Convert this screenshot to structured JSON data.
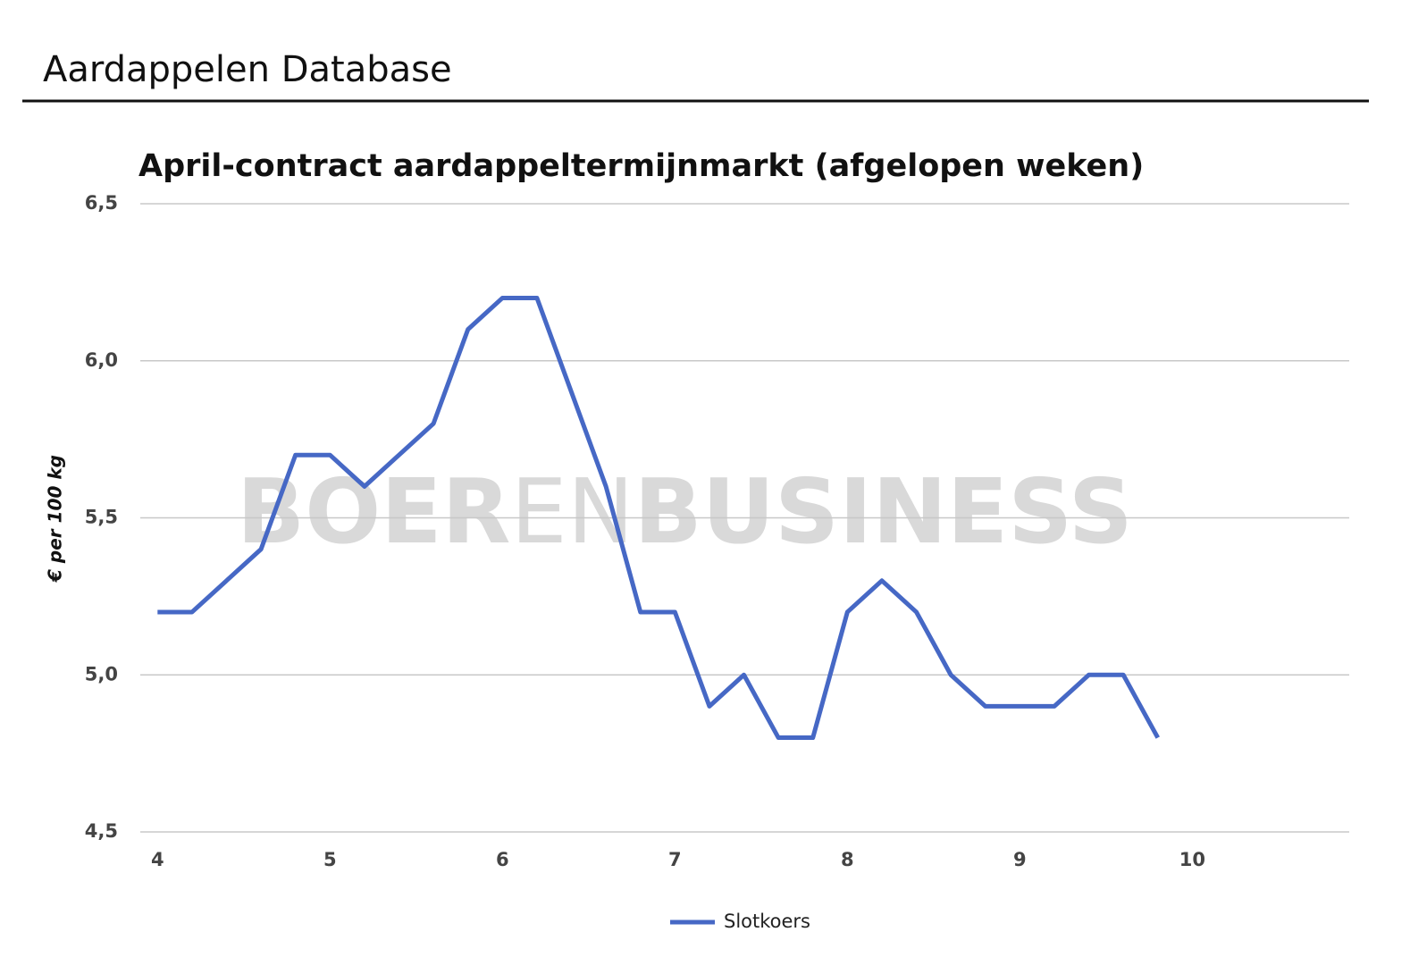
{
  "header": {
    "title": "Aardappelen Database"
  },
  "chart_data": {
    "type": "line",
    "title": "April-contract aardappeltermijnmarkt (afgelopen weken)",
    "y_label": "€ per 100 kg",
    "watermark": [
      "BOER",
      "EN",
      "BUSINESS"
    ],
    "x": [
      4.0,
      4.2,
      4.4,
      4.6,
      4.8,
      5.0,
      5.2,
      5.4,
      5.6,
      5.8,
      6.0,
      6.2,
      6.4,
      6.6,
      6.8,
      7.0,
      7.2,
      7.4,
      7.6,
      7.8,
      8.0,
      8.2,
      8.4,
      8.6,
      8.8,
      9.0,
      9.2,
      9.4,
      9.6,
      9.8
    ],
    "series": [
      {
        "name": "Slotkoers",
        "color": "#4668c5",
        "values": [
          5.2,
          5.2,
          5.3,
          5.4,
          5.7,
          5.7,
          5.6,
          5.7,
          5.8,
          6.1,
          6.2,
          6.2,
          5.9,
          5.6,
          5.2,
          5.2,
          4.9,
          5.0,
          4.8,
          4.8,
          5.2,
          5.3,
          5.2,
          5.0,
          4.9,
          4.9,
          4.9,
          5.0,
          5.0,
          4.8
        ]
      }
    ],
    "xlim": [
      3.9,
      10.91
    ],
    "xticks": [
      4,
      5,
      6,
      7,
      8,
      9,
      10
    ],
    "ylim": [
      4.5,
      6.5
    ],
    "yticks": [
      {
        "value": 4.5,
        "label": "4,5"
      },
      {
        "value": 5.0,
        "label": "5,0"
      },
      {
        "value": 5.5,
        "label": "5,5"
      },
      {
        "value": 6.0,
        "label": "6,0"
      },
      {
        "value": 6.5,
        "label": "6,5"
      }
    ],
    "grid": true,
    "legend": "bottom"
  }
}
